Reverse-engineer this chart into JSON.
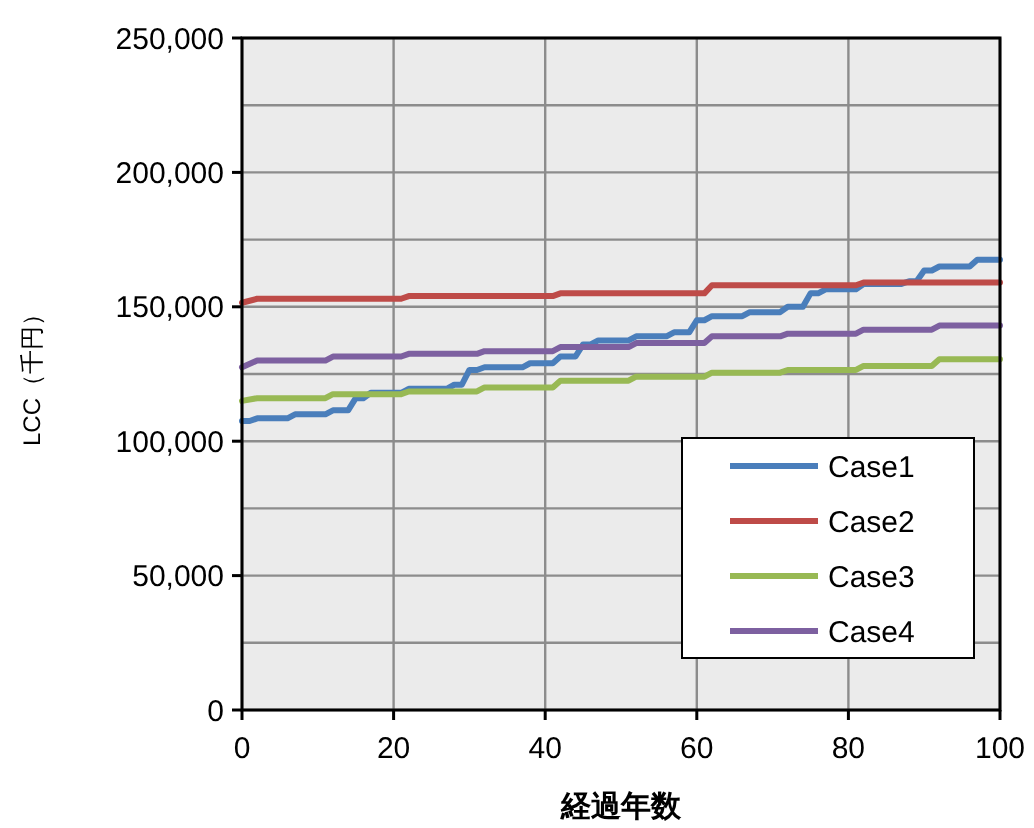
{
  "chart_data": {
    "type": "line",
    "xlabel": "経過年数",
    "ylabel": "LCC（千円）",
    "xlim": [
      0,
      100
    ],
    "xticks": [
      0,
      20,
      40,
      60,
      80,
      100
    ],
    "ylim": [
      0,
      250000
    ],
    "yticks": [
      {
        "value": 0,
        "label": "0"
      },
      {
        "value": 25000,
        "label": null
      },
      {
        "value": 50000,
        "label": "50,000"
      },
      {
        "value": 75000,
        "label": null
      },
      {
        "value": 100000,
        "label": "100,000"
      },
      {
        "value": 125000,
        "label": null
      },
      {
        "value": 150000,
        "label": "150,000"
      },
      {
        "value": 175000,
        "label": null
      },
      {
        "value": 200000,
        "label": "200,000"
      },
      {
        "value": 225000,
        "label": null
      },
      {
        "value": 250000,
        "label": "250,000"
      }
    ],
    "grid": true,
    "legend": "bottom right",
    "marker": "none",
    "line_style": "solid",
    "series": [
      {
        "name": "Case1",
        "color": "#4a7ebb",
        "x": [
          0,
          1,
          2,
          6,
          7,
          11,
          12,
          14,
          15,
          16,
          17,
          21,
          22,
          27,
          28,
          29,
          30,
          31,
          32,
          37,
          38,
          41,
          42,
          44,
          45,
          46,
          47,
          51,
          52,
          56,
          57,
          59,
          60,
          61,
          62,
          66,
          67,
          71,
          72,
          74,
          75,
          76,
          77,
          81,
          82,
          87,
          88,
          89,
          90,
          91,
          92,
          96,
          97,
          100
        ],
        "values": [
          107500,
          107500,
          108500,
          108500,
          110000,
          110000,
          111500,
          111500,
          116000,
          116000,
          118000,
          118000,
          119500,
          119500,
          121000,
          121000,
          126500,
          126500,
          127500,
          127500,
          129000,
          129000,
          131500,
          131500,
          136000,
          136000,
          137500,
          137500,
          139000,
          139000,
          140500,
          140500,
          145000,
          145000,
          146500,
          146500,
          148000,
          148000,
          150000,
          150000,
          155000,
          155000,
          156500,
          156500,
          158500,
          158500,
          159500,
          159500,
          163500,
          163500,
          165000,
          165000,
          167500,
          167500
        ]
      },
      {
        "name": "Case2",
        "color": "#be4b48",
        "x": [
          0,
          2,
          21,
          22,
          41,
          42,
          61,
          62,
          81,
          82,
          100
        ],
        "values": [
          151500,
          153000,
          153000,
          154000,
          154000,
          155000,
          155000,
          158000,
          158000,
          159000,
          159000
        ]
      },
      {
        "name": "Case3",
        "color": "#98b954",
        "x": [
          0,
          2,
          11,
          12,
          21,
          22,
          31,
          32,
          41,
          42,
          51,
          52,
          61,
          62,
          71,
          72,
          81,
          82,
          91,
          92,
          100
        ],
        "values": [
          115000,
          116000,
          116000,
          117500,
          117500,
          118500,
          118500,
          120000,
          120000,
          122500,
          122500,
          124000,
          124000,
          125500,
          125500,
          126500,
          126500,
          128000,
          128000,
          130500,
          130500
        ]
      },
      {
        "name": "Case4",
        "color": "#7d60a0",
        "x": [
          0,
          2,
          11,
          12,
          21,
          22,
          31,
          32,
          41,
          42,
          51,
          52,
          61,
          62,
          71,
          72,
          81,
          82,
          91,
          92,
          100
        ],
        "values": [
          127500,
          130000,
          130000,
          131500,
          131500,
          132500,
          132500,
          133500,
          133500,
          135000,
          135000,
          136500,
          136500,
          139000,
          139000,
          140000,
          140000,
          141500,
          141500,
          143000,
          143000
        ]
      }
    ]
  }
}
